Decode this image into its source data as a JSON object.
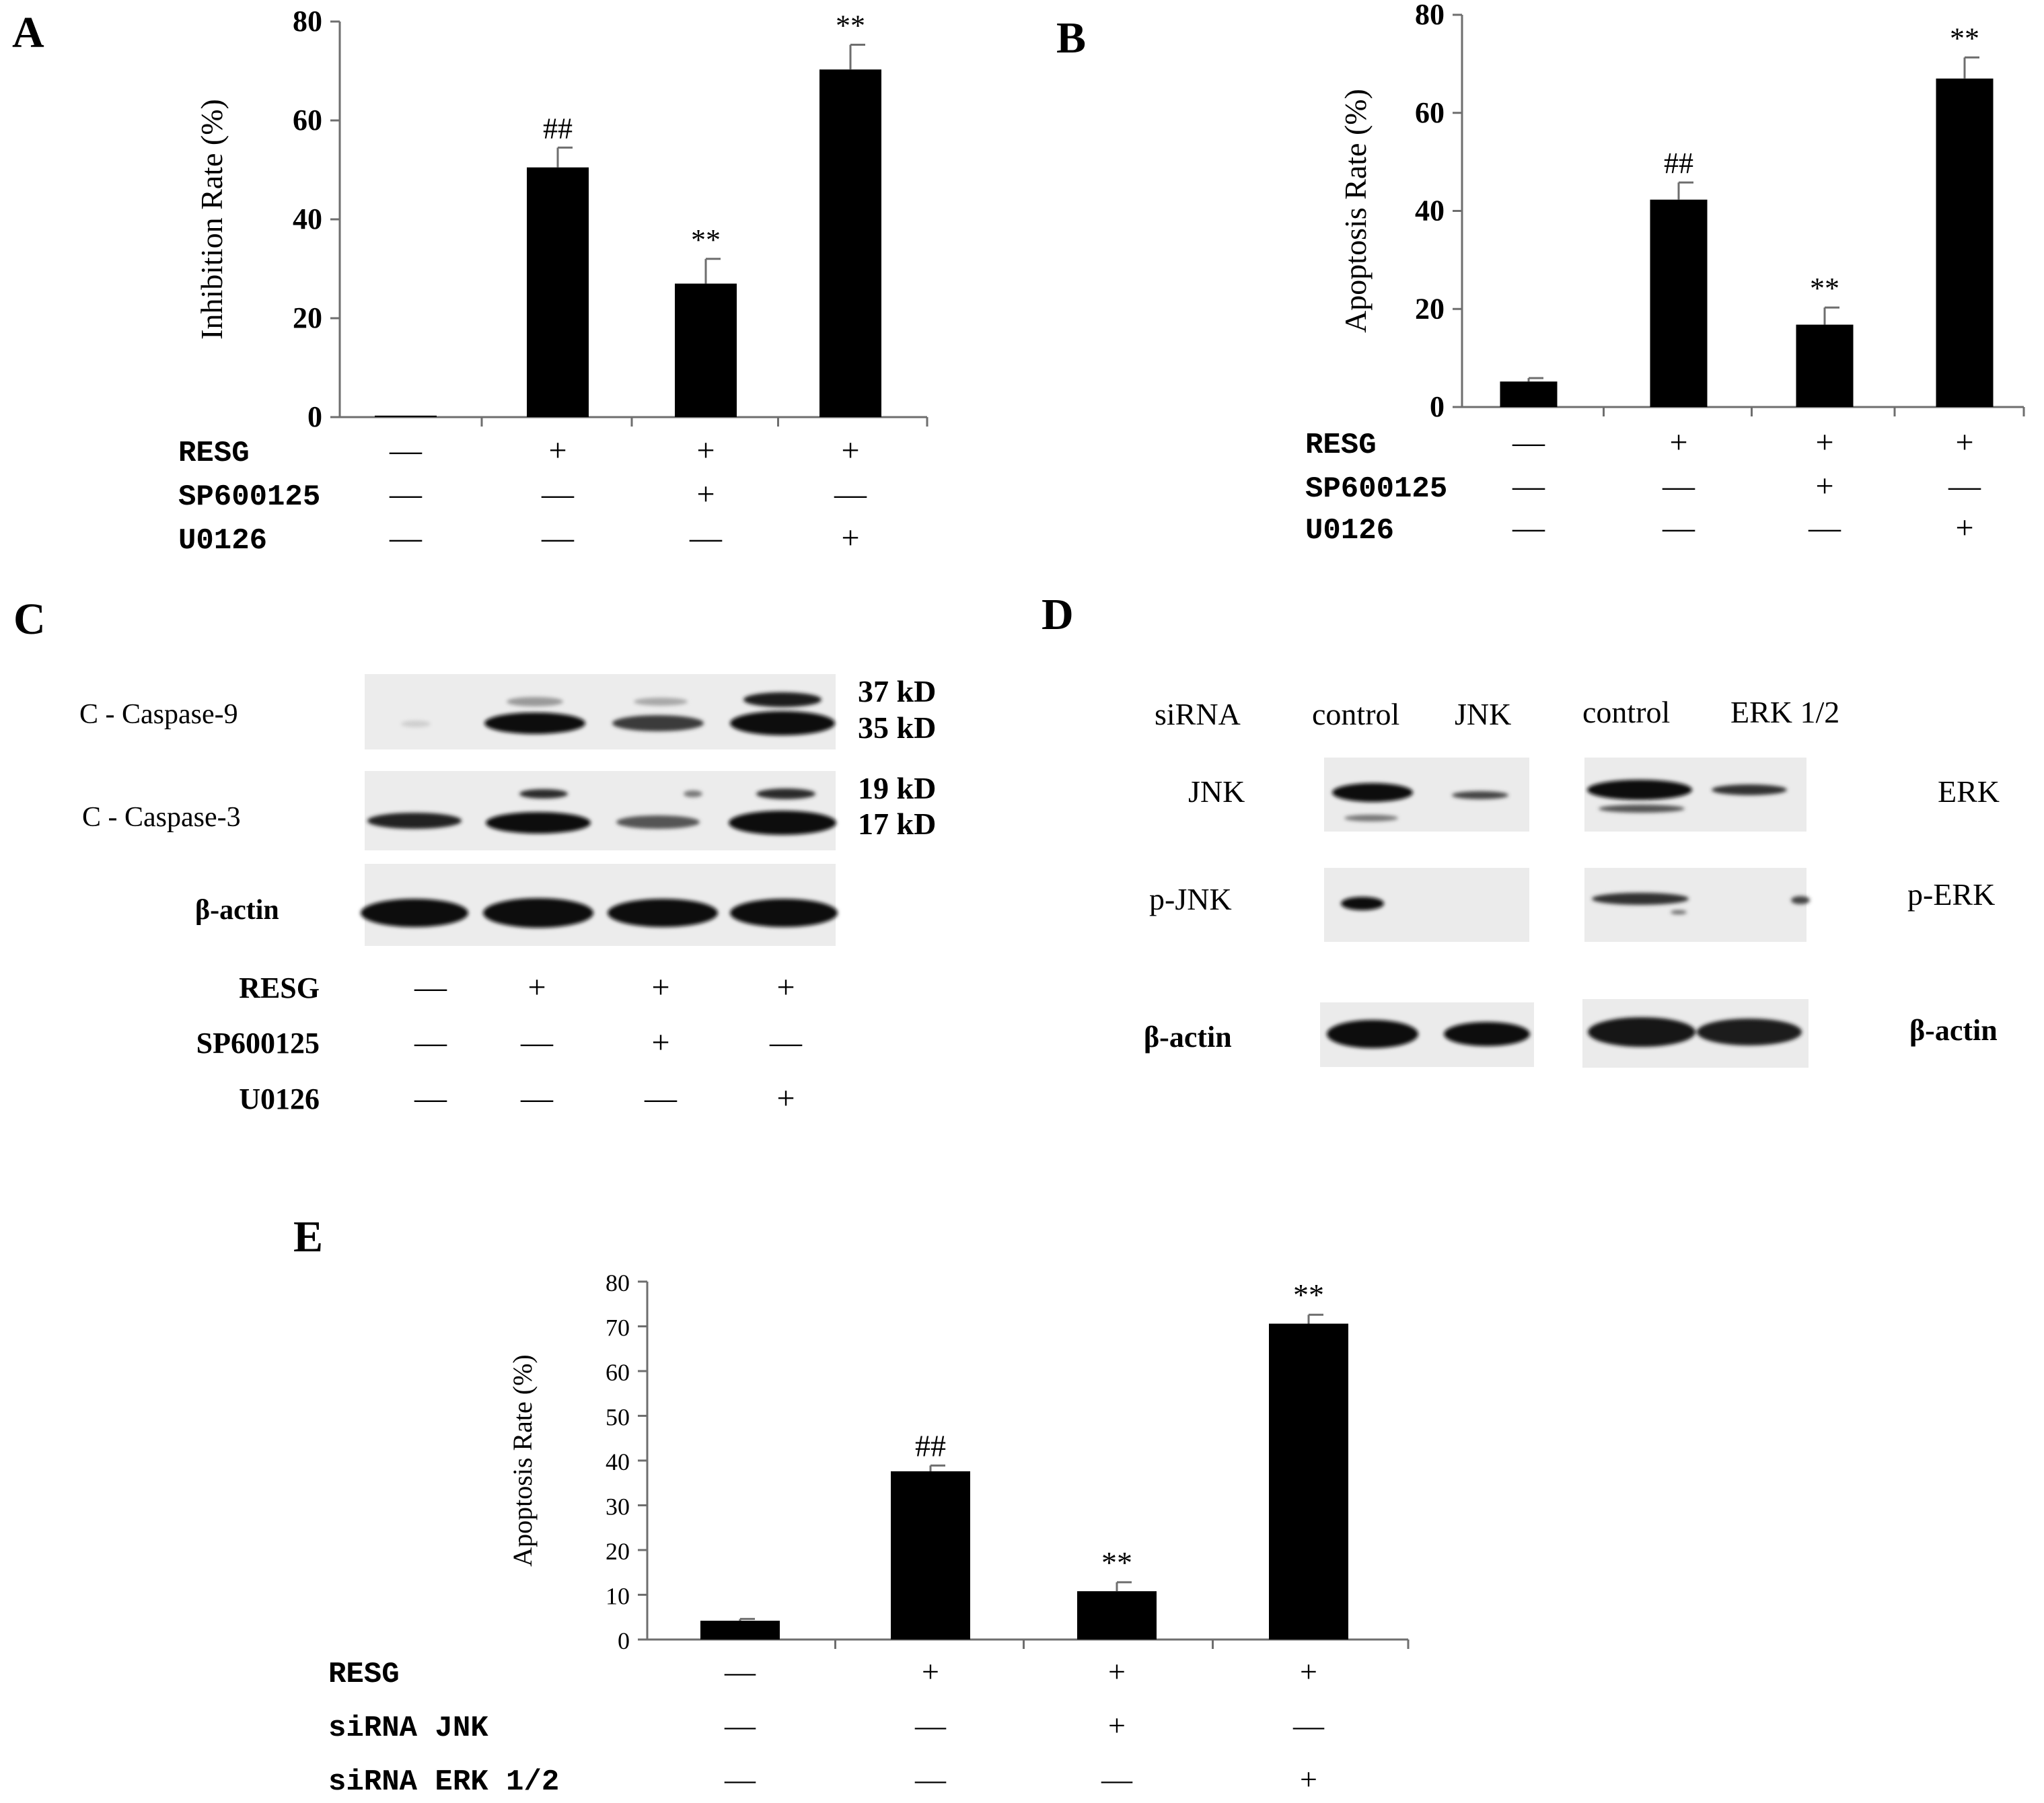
{
  "colors": {
    "bar": "#000000",
    "axis": "#6e6e6e",
    "blot_bg": "#e9e9e9",
    "text": "#000000"
  },
  "chart_data": [
    {
      "panel": "A",
      "type": "bar",
      "ylabel": "Inhibition Rate (%)",
      "ylim": [
        0,
        80
      ],
      "yticks": [
        "0",
        "20",
        "40",
        "60",
        "80"
      ],
      "categories": [
        "1",
        "2",
        "3",
        "4"
      ],
      "values": [
        0.3,
        50.5,
        27,
        70.3
      ],
      "errors": [
        0,
        4,
        5,
        5
      ],
      "annotations": [
        "",
        "##",
        "**",
        "**"
      ],
      "treatments": [
        {
          "label": "RESG",
          "signs": [
            "—",
            "+",
            "+",
            "+"
          ]
        },
        {
          "label": "SP600125",
          "signs": [
            "—",
            "—",
            "+",
            "—"
          ]
        },
        {
          "label": "U0126",
          "signs": [
            "—",
            "—",
            "—",
            "+"
          ]
        }
      ]
    },
    {
      "panel": "B",
      "type": "bar",
      "ylabel": "Apoptosis Rate (%)",
      "ylim": [
        0,
        80
      ],
      "yticks": [
        "0",
        "20",
        "40",
        "60",
        "80"
      ],
      "categories": [
        "1",
        "2",
        "3",
        "4"
      ],
      "values": [
        5.2,
        42.3,
        16.8,
        67
      ],
      "errors": [
        0.7,
        3.5,
        3.5,
        4.3
      ],
      "annotations": [
        "",
        "##",
        "**",
        "**"
      ],
      "treatments": [
        {
          "label": "RESG",
          "signs": [
            "—",
            "+",
            "+",
            "+"
          ]
        },
        {
          "label": "SP600125",
          "signs": [
            "—",
            "—",
            "+",
            "—"
          ]
        },
        {
          "label": "U0126",
          "signs": [
            "—",
            "—",
            "—",
            "+"
          ]
        }
      ]
    },
    {
      "panel": "E",
      "type": "bar",
      "ylabel": "Apoptosis Rate (%)",
      "ylim": [
        0,
        80
      ],
      "yticks": [
        "0",
        "10",
        "20",
        "30",
        "40",
        "50",
        "60",
        "70",
        "80"
      ],
      "categories": [
        "1",
        "2",
        "3",
        "4"
      ],
      "values": [
        4.2,
        37.6,
        10.8,
        70.6
      ],
      "errors": [
        0.4,
        1.3,
        2,
        2
      ],
      "annotations": [
        "",
        "##",
        "**",
        "**"
      ],
      "treatments": [
        {
          "label": "RESG",
          "signs": [
            "—",
            "+",
            "+",
            "+"
          ]
        },
        {
          "label": "siRNA  JNK",
          "signs": [
            "—",
            "—",
            "+",
            "—"
          ]
        },
        {
          "label": "siRNA  ERK 1/2",
          "signs": [
            "—",
            "—",
            "—",
            "+"
          ]
        }
      ]
    }
  ],
  "blots": {
    "C": {
      "rows": [
        {
          "label": "C - Caspase-9",
          "kd": [
            "37 kD",
            "35 kD"
          ]
        },
        {
          "label": "C - Caspase-3",
          "kd": [
            "19 kD",
            "17 kD"
          ]
        },
        {
          "label": "β-actin",
          "kd": []
        }
      ],
      "treatments": [
        {
          "label": "RESG",
          "signs": [
            "—",
            "+",
            "+",
            "+"
          ]
        },
        {
          "label": "SP600125",
          "signs": [
            "—",
            "—",
            "+",
            "—"
          ]
        },
        {
          "label": "U0126",
          "signs": [
            "—",
            "—",
            "—",
            "+"
          ]
        }
      ]
    },
    "D": {
      "header": {
        "label": "siRNA",
        "lanes": [
          "control",
          "JNK",
          "control",
          "ERK 1/2"
        ]
      },
      "left_rows": [
        "JNK",
        "p-JNK",
        "β-actin"
      ],
      "right_rows": [
        "ERK",
        "p-ERK",
        "β-actin"
      ]
    }
  },
  "panel_labels": [
    "A",
    "B",
    "C",
    "D",
    "E"
  ]
}
